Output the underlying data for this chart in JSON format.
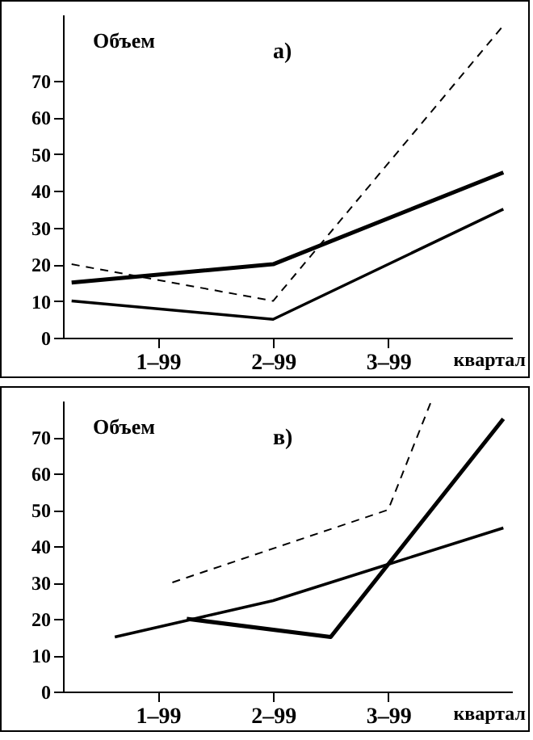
{
  "chart_data": [
    {
      "type": "line",
      "title": "а)",
      "ylabel": "Объем",
      "xlabel": "квартал",
      "categories": [
        null,
        null,
        null,
        null,
        null,
        null,
        "1–99",
        null,
        null,
        null,
        null,
        null,
        null,
        null,
        "2–99",
        null,
        null,
        null,
        null,
        null,
        null,
        null,
        "3–99",
        null,
        null,
        null,
        null,
        null,
        null,
        null,
        null
      ],
      "ylim": [
        0,
        88
      ],
      "yticks": [
        0,
        10,
        20,
        30,
        40,
        50,
        60,
        70
      ],
      "grid": false,
      "marker": "none",
      "series": [
        {
          "color": "#000000",
          "line_style": "solid",
          "values": [
            15,
            null,
            null,
            null,
            null,
            null,
            null,
            null,
            null,
            null,
            null,
            null,
            null,
            null,
            20,
            null,
            null,
            null,
            null,
            null,
            null,
            null,
            null,
            null,
            null,
            null,
            null,
            null,
            null,
            null,
            45
          ]
        },
        {
          "color": "#000000",
          "line_style": "solid",
          "values": [
            10,
            null,
            null,
            null,
            null,
            null,
            null,
            null,
            null,
            null,
            null,
            null,
            null,
            null,
            5,
            null,
            null,
            null,
            null,
            null,
            null,
            null,
            null,
            null,
            null,
            null,
            null,
            null,
            null,
            null,
            35
          ]
        },
        {
          "color": "#000000",
          "line_style": "dashed",
          "values": [
            20,
            null,
            null,
            null,
            null,
            null,
            null,
            null,
            null,
            null,
            null,
            null,
            null,
            null,
            10,
            null,
            null,
            null,
            null,
            null,
            null,
            null,
            null,
            null,
            null,
            null,
            null,
            null,
            null,
            null,
            85
          ]
        }
      ]
    },
    {
      "type": "line",
      "title": "в)",
      "ylabel": "Объем",
      "xlabel": "квартал",
      "categories": [
        null,
        null,
        null,
        null,
        null,
        null,
        "1–99",
        null,
        null,
        null,
        null,
        null,
        null,
        null,
        "2–99",
        null,
        null,
        null,
        null,
        null,
        null,
        null,
        "3–99",
        null,
        null,
        null,
        null,
        null,
        null,
        null,
        null
      ],
      "ylim": [
        0,
        80
      ],
      "yticks": [
        0,
        10,
        20,
        30,
        40,
        50,
        60,
        70
      ],
      "grid": false,
      "marker": "none",
      "series": [
        {
          "color": "#000000",
          "line_style": "solid",
          "values": [
            null,
            null,
            null,
            null,
            null,
            null,
            null,
            null,
            20,
            null,
            null,
            null,
            null,
            null,
            null,
            null,
            null,
            null,
            15,
            null,
            null,
            null,
            null,
            null,
            null,
            null,
            null,
            null,
            null,
            null,
            75
          ]
        },
        {
          "color": "#000000",
          "line_style": "solid",
          "values": [
            null,
            null,
            null,
            15,
            null,
            null,
            null,
            null,
            null,
            null,
            null,
            null,
            null,
            null,
            25,
            null,
            null,
            null,
            null,
            null,
            null,
            null,
            35,
            null,
            null,
            null,
            null,
            null,
            null,
            null,
            45
          ]
        },
        {
          "color": "#000000",
          "line_style": "dashed",
          "values": [
            null,
            null,
            null,
            null,
            null,
            null,
            null,
            30,
            null,
            null,
            null,
            null,
            null,
            null,
            null,
            null,
            null,
            null,
            null,
            null,
            null,
            null,
            50,
            null,
            null,
            80,
            null,
            null,
            null,
            null,
            null
          ]
        }
      ]
    }
  ]
}
